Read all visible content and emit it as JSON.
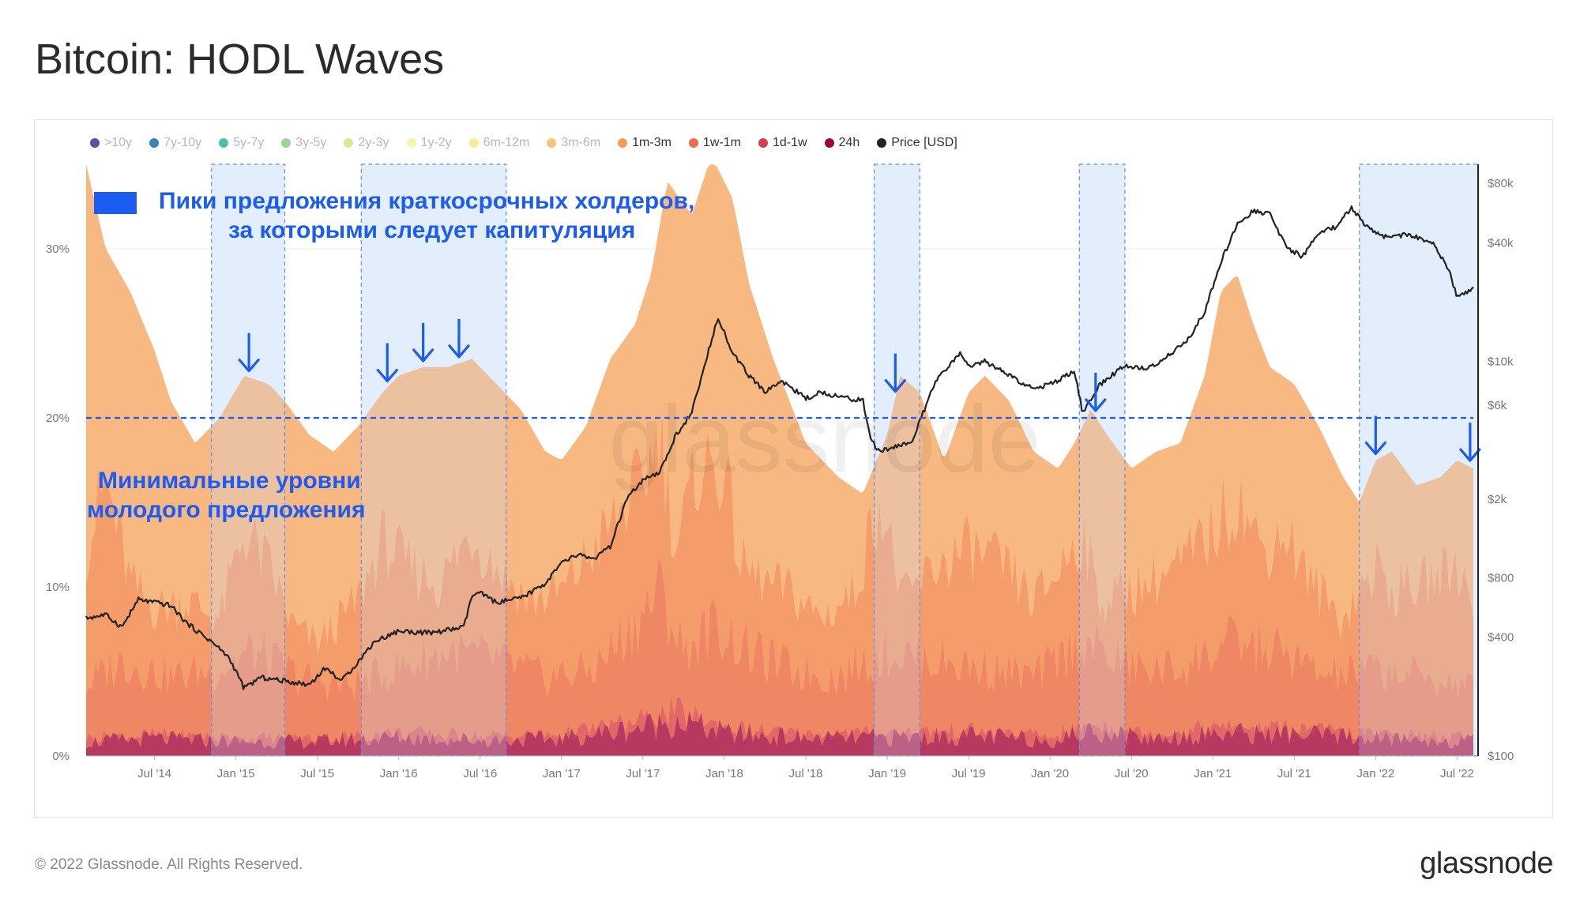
{
  "title": "Bitcoin: HODL Waves",
  "footer": {
    "copyright": "© 2022 Glassnode. All Rights Reserved.",
    "brand": "glassnode"
  },
  "watermark": "glassnode",
  "colors": {
    "accent": "#1b5cf2",
    "band_3m_6m": "#f8b47a",
    "band_1m_3m": "#f59866",
    "band_1w_1m": "#ec7d62",
    "band_1d_1w": "#d9546a",
    "band_24h": "#a82a5c",
    "price": "#222222"
  },
  "legend": [
    {
      "label": ">10y",
      "color": "#5e4fa2",
      "active": false
    },
    {
      "label": "7y-10y",
      "color": "#3288bd",
      "active": false
    },
    {
      "label": "5y-7y",
      "color": "#4ebfae",
      "active": false
    },
    {
      "label": "3y-5y",
      "color": "#99d594",
      "active": false
    },
    {
      "label": "2y-3y",
      "color": "#d3ed8c",
      "active": false
    },
    {
      "label": "1y-2y",
      "color": "#f4f7a6",
      "active": false
    },
    {
      "label": "6m-12m",
      "color": "#fde99a",
      "active": false
    },
    {
      "label": "3m-6m",
      "color": "#fdc27a",
      "active": false
    },
    {
      "label": "1m-3m",
      "color": "#f89a5c",
      "active": true
    },
    {
      "label": "1w-1m",
      "color": "#ef6b4b",
      "active": true
    },
    {
      "label": "1d-1w",
      "color": "#d6404e",
      "active": true
    },
    {
      "label": "24h",
      "color": "#9e0142",
      "active": true
    },
    {
      "label": "Price [USD]",
      "color": "#222222",
      "active": true
    }
  ],
  "annotations": {
    "peaks_legend_line1": "Пики предложения краткосрочных холдеров,",
    "peaks_legend_line2": "за которыми следует капитуляция",
    "floor_line1": "Минимальные уровни",
    "floor_line2": "молодого предложения",
    "floor_level_pct": 20
  },
  "chart_data": {
    "type": "area",
    "title": "Bitcoin: HODL Waves",
    "x_range": [
      2014.08,
      2022.6
    ],
    "x_ticks": [
      {
        "label": "Jul '14",
        "t": 2014.5
      },
      {
        "label": "Jan '15",
        "t": 2015.0
      },
      {
        "label": "Jul '15",
        "t": 2015.5
      },
      {
        "label": "Jan '16",
        "t": 2016.0
      },
      {
        "label": "Jul '16",
        "t": 2016.5
      },
      {
        "label": "Jan '17",
        "t": 2017.0
      },
      {
        "label": "Jul '17",
        "t": 2017.5
      },
      {
        "label": "Jan '18",
        "t": 2018.0
      },
      {
        "label": "Jul '18",
        "t": 2018.5
      },
      {
        "label": "Jan '19",
        "t": 2019.0
      },
      {
        "label": "Jul '19",
        "t": 2019.5
      },
      {
        "label": "Jan '20",
        "t": 2020.0
      },
      {
        "label": "Jul '20",
        "t": 2020.5
      },
      {
        "label": "Jan '21",
        "t": 2021.0
      },
      {
        "label": "Jul '21",
        "t": 2021.5
      },
      {
        "label": "Jan '22",
        "t": 2022.0
      },
      {
        "label": "Jul '22",
        "t": 2022.5
      }
    ],
    "y_left": {
      "range": [
        0,
        35
      ],
      "ticks": [
        0,
        10,
        20,
        30
      ],
      "tick_labels": [
        "0%",
        "10%",
        "20%",
        "30%"
      ]
    },
    "y_right": {
      "scale": "log",
      "range": [
        100,
        100000
      ],
      "ticks": [
        100,
        400,
        800,
        2000,
        6000,
        10000,
        40000,
        80000
      ],
      "tick_labels": [
        "$100",
        "$400",
        "$800",
        "$2k",
        "$6k",
        "$10k",
        "$40k",
        "$80k"
      ]
    },
    "highlight_periods": [
      {
        "start": 2014.85,
        "end": 2015.3
      },
      {
        "start": 2015.77,
        "end": 2016.66
      },
      {
        "start": 2018.92,
        "end": 2019.2
      },
      {
        "start": 2020.18,
        "end": 2020.46
      },
      {
        "start": 2021.9,
        "end": 2022.63
      }
    ],
    "arrows": [
      2015.08,
      2015.93,
      2016.15,
      2016.37,
      2019.05,
      2020.28,
      2022.0,
      2022.58
    ],
    "series": [
      {
        "name": "1m-3m",
        "t": [
          2014.08,
          2014.2,
          2014.35,
          2014.5,
          2014.6,
          2014.75,
          2014.9,
          2015.05,
          2015.2,
          2015.3,
          2015.45,
          2015.6,
          2015.75,
          2015.9,
          2016.0,
          2016.15,
          2016.3,
          2016.45,
          2016.6,
          2016.75,
          2016.9,
          2017.0,
          2017.15,
          2017.3,
          2017.45,
          2017.55,
          2017.65,
          2017.8,
          2017.92,
          2018.05,
          2018.15,
          2018.3,
          2018.5,
          2018.7,
          2018.85,
          2019.0,
          2019.08,
          2019.2,
          2019.35,
          2019.5,
          2019.6,
          2019.75,
          2019.9,
          2020.05,
          2020.15,
          2020.25,
          2020.35,
          2020.5,
          2020.65,
          2020.8,
          2020.95,
          2021.05,
          2021.15,
          2021.25,
          2021.35,
          2021.5,
          2021.65,
          2021.8,
          2021.9,
          2022.0,
          2022.1,
          2022.25,
          2022.4,
          2022.5,
          2022.6
        ],
        "values": [
          35.0,
          30.0,
          27.5,
          24.0,
          21.0,
          18.5,
          20.0,
          22.5,
          22.0,
          21.0,
          19.0,
          18.0,
          19.5,
          21.5,
          22.5,
          23.0,
          23.0,
          23.5,
          22.0,
          20.5,
          18.0,
          17.5,
          19.5,
          23.5,
          25.5,
          28.5,
          34.0,
          32.0,
          35.5,
          33.0,
          28.0,
          23.5,
          18.5,
          16.5,
          15.5,
          19.0,
          22.5,
          21.5,
          17.5,
          21.5,
          22.5,
          21.0,
          18.0,
          17.0,
          18.5,
          20.5,
          19.0,
          17.0,
          18.0,
          18.5,
          22.5,
          27.5,
          28.5,
          25.5,
          23.0,
          22.0,
          19.5,
          16.5,
          15.0,
          17.5,
          18.0,
          16.0,
          16.5,
          17.5,
          17.0
        ]
      },
      {
        "name": "1w-1m",
        "t": [
          2014.08,
          2014.2,
          2014.35,
          2014.5,
          2014.7,
          2014.9,
          2015.05,
          2015.2,
          2015.35,
          2015.5,
          2015.75,
          2015.9,
          2016.05,
          2016.25,
          2016.45,
          2016.6,
          2016.8,
          2017.0,
          2017.2,
          2017.35,
          2017.5,
          2017.6,
          2017.7,
          2017.85,
          2018.0,
          2018.1,
          2018.25,
          2018.4,
          2018.6,
          2018.8,
          2018.95,
          2019.1,
          2019.3,
          2019.5,
          2019.7,
          2019.9,
          2020.0,
          2020.2,
          2020.3,
          2020.45,
          2020.6,
          2020.8,
          2021.0,
          2021.15,
          2021.3,
          2021.45,
          2021.6,
          2021.8,
          2022.0,
          2022.1,
          2022.3,
          2022.5,
          2022.6
        ],
        "values": [
          12.0,
          16.0,
          10.0,
          8.5,
          9.0,
          8.0,
          13.0,
          11.0,
          7.5,
          6.5,
          9.0,
          12.5,
          11.0,
          10.0,
          13.0,
          11.0,
          9.0,
          9.5,
          12.0,
          14.0,
          16.0,
          19.0,
          12.0,
          17.0,
          16.5,
          11.0,
          10.0,
          9.5,
          8.0,
          9.5,
          15.0,
          9.0,
          11.0,
          12.0,
          11.0,
          9.0,
          10.0,
          13.0,
          9.0,
          9.5,
          10.0,
          11.0,
          13.0,
          15.0,
          12.0,
          13.0,
          10.0,
          8.0,
          11.0,
          9.5,
          10.0,
          11.0,
          9.0
        ]
      },
      {
        "name": "1d-1w",
        "t": [
          2014.08,
          2014.3,
          2014.6,
          2014.9,
          2015.1,
          2015.4,
          2015.7,
          2016.0,
          2016.3,
          2016.6,
          2016.9,
          2017.2,
          2017.45,
          2017.6,
          2017.75,
          2017.95,
          2018.15,
          2018.4,
          2018.7,
          2019.0,
          2019.3,
          2019.6,
          2019.9,
          2020.2,
          2020.5,
          2020.8,
          2021.1,
          2021.4,
          2021.7,
          2022.0,
          2022.3,
          2022.6
        ],
        "values": [
          4.0,
          5.5,
          4.5,
          5.0,
          6.0,
          4.5,
          4.0,
          5.0,
          6.0,
          5.5,
          4.5,
          5.0,
          7.5,
          9.5,
          6.0,
          7.5,
          6.0,
          5.0,
          4.5,
          6.0,
          5.5,
          5.0,
          4.5,
          6.5,
          5.0,
          5.0,
          6.5,
          6.0,
          4.5,
          5.0,
          4.5,
          4.0
        ]
      },
      {
        "name": "24h",
        "t": [
          2014.08,
          2014.5,
          2015.0,
          2015.5,
          2016.0,
          2016.5,
          2017.0,
          2017.5,
          2017.7,
          2018.0,
          2018.5,
          2019.0,
          2019.5,
          2020.0,
          2020.3,
          2020.6,
          2021.0,
          2021.5,
          2022.0,
          2022.6
        ],
        "values": [
          1.0,
          1.2,
          1.0,
          1.0,
          1.3,
          1.1,
          1.2,
          2.0,
          2.5,
          1.6,
          1.2,
          1.3,
          1.4,
          1.1,
          1.8,
          1.2,
          1.6,
          1.5,
          1.2,
          1.0
        ]
      },
      {
        "name": "Price [USD]",
        "t": [
          2014.08,
          2014.2,
          2014.3,
          2014.4,
          2014.5,
          2014.6,
          2014.7,
          2014.85,
          2014.95,
          2015.0,
          2015.05,
          2015.15,
          2015.3,
          2015.45,
          2015.55,
          2015.65,
          2015.75,
          2015.85,
          2016.0,
          2016.2,
          2016.4,
          2016.45,
          2016.5,
          2016.6,
          2016.75,
          2016.9,
          2017.0,
          2017.1,
          2017.2,
          2017.3,
          2017.4,
          2017.5,
          2017.6,
          2017.7,
          2017.8,
          2017.9,
          2017.96,
          2018.05,
          2018.15,
          2018.25,
          2018.35,
          2018.5,
          2018.6,
          2018.75,
          2018.85,
          2018.9,
          2018.95,
          2019.05,
          2019.15,
          2019.3,
          2019.45,
          2019.5,
          2019.6,
          2019.75,
          2019.9,
          2020.05,
          2020.15,
          2020.2,
          2020.3,
          2020.45,
          2020.6,
          2020.75,
          2020.85,
          2020.95,
          2021.05,
          2021.15,
          2021.25,
          2021.35,
          2021.45,
          2021.55,
          2021.65,
          2021.75,
          2021.85,
          2021.95,
          2022.05,
          2022.2,
          2022.35,
          2022.45,
          2022.5,
          2022.6
        ],
        "values": [
          500,
          520,
          450,
          620,
          600,
          580,
          470,
          380,
          320,
          270,
          220,
          250,
          240,
          230,
          280,
          240,
          300,
          380,
          430,
          420,
          450,
          650,
          670,
          600,
          630,
          750,
          950,
          1050,
          1000,
          1150,
          2000,
          2500,
          2700,
          4200,
          5500,
          11000,
          17000,
          11000,
          8500,
          7000,
          8000,
          6500,
          7000,
          6500,
          6400,
          4000,
          3500,
          3700,
          3900,
          8000,
          11000,
          9500,
          10000,
          8500,
          7200,
          8000,
          9000,
          5500,
          7500,
          9500,
          9200,
          11000,
          13000,
          18000,
          32000,
          50000,
          58000,
          56000,
          38000,
          34000,
          45000,
          48000,
          60000,
          48000,
          43000,
          44000,
          40000,
          29000,
          21000,
          23500
        ]
      }
    ]
  }
}
